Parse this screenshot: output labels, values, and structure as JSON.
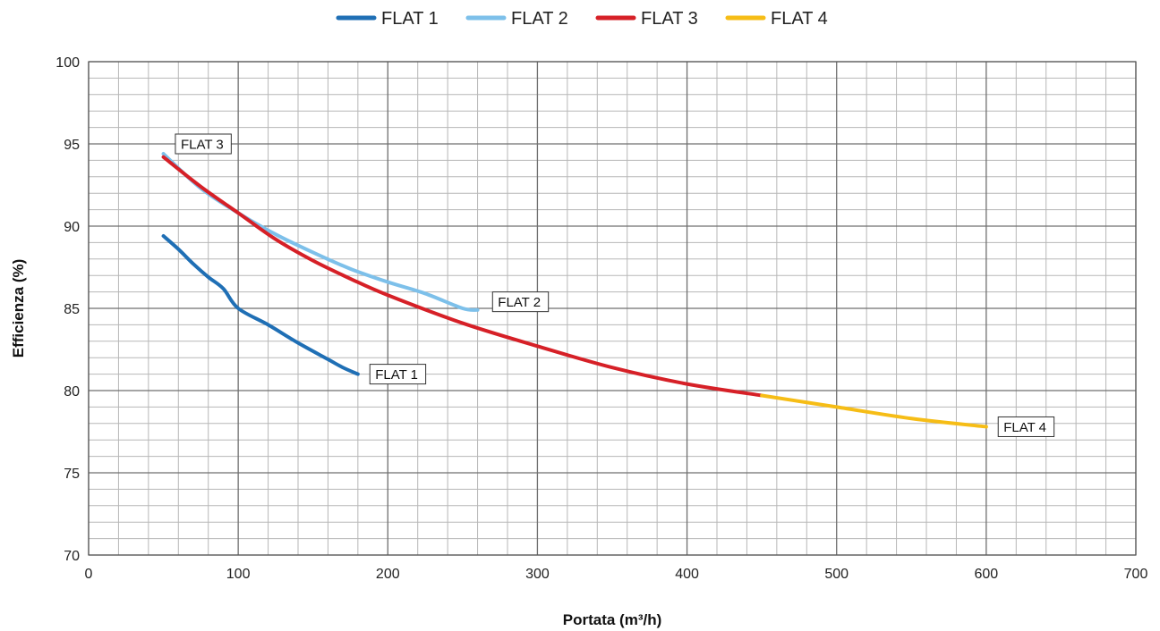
{
  "chart_data": {
    "type": "line",
    "title": "",
    "xlabel": "Portata (m³/h)",
    "ylabel": "Efficienza (%)",
    "xlim": [
      0,
      700
    ],
    "ylim": [
      70,
      100
    ],
    "x_major_ticks": [
      0,
      100,
      200,
      300,
      400,
      500,
      600,
      700
    ],
    "y_major_ticks": [
      70,
      75,
      80,
      85,
      90,
      95,
      100
    ],
    "x_minor_step": 20,
    "y_minor_step": 1,
    "grid": "on",
    "legend_position": "top-center",
    "series": [
      {
        "name": "FLAT 1",
        "color": "#1f6fb5",
        "points": [
          [
            50,
            89.4
          ],
          [
            60,
            88.6
          ],
          [
            70,
            87.7
          ],
          [
            80,
            86.9
          ],
          [
            90,
            86.2
          ],
          [
            100,
            85.0
          ],
          [
            120,
            84.0
          ],
          [
            140,
            82.9
          ],
          [
            160,
            81.9
          ],
          [
            170,
            81.4
          ],
          [
            180,
            81.0
          ]
        ]
      },
      {
        "name": "FLAT 2",
        "color": "#7dc0ea",
        "points": [
          [
            50,
            94.4
          ],
          [
            75,
            92.3
          ],
          [
            100,
            90.8
          ],
          [
            125,
            89.5
          ],
          [
            150,
            88.4
          ],
          [
            175,
            87.4
          ],
          [
            200,
            86.6
          ],
          [
            225,
            85.9
          ],
          [
            250,
            85.0
          ],
          [
            260,
            84.9
          ]
        ]
      },
      {
        "name": "FLAT 3",
        "color": "#d62027",
        "points": [
          [
            50,
            94.2
          ],
          [
            75,
            92.4
          ],
          [
            100,
            90.8
          ],
          [
            125,
            89.2
          ],
          [
            150,
            87.9
          ],
          [
            175,
            86.8
          ],
          [
            200,
            85.8
          ],
          [
            250,
            84.1
          ],
          [
            300,
            82.7
          ],
          [
            350,
            81.4
          ],
          [
            400,
            80.4
          ],
          [
            450,
            79.7
          ]
        ]
      },
      {
        "name": "FLAT 4",
        "color": "#f6bd16",
        "points": [
          [
            450,
            79.7
          ],
          [
            500,
            79.0
          ],
          [
            550,
            78.3
          ],
          [
            600,
            77.8
          ]
        ]
      }
    ],
    "annotations": [
      {
        "text": "FLAT 3",
        "x": 58,
        "y": 95.0
      },
      {
        "text": "FLAT 2",
        "x": 270,
        "y": 85.4
      },
      {
        "text": "FLAT 1",
        "x": 188,
        "y": 81.0
      },
      {
        "text": "FLAT 4",
        "x": 608,
        "y": 77.8
      }
    ]
  }
}
